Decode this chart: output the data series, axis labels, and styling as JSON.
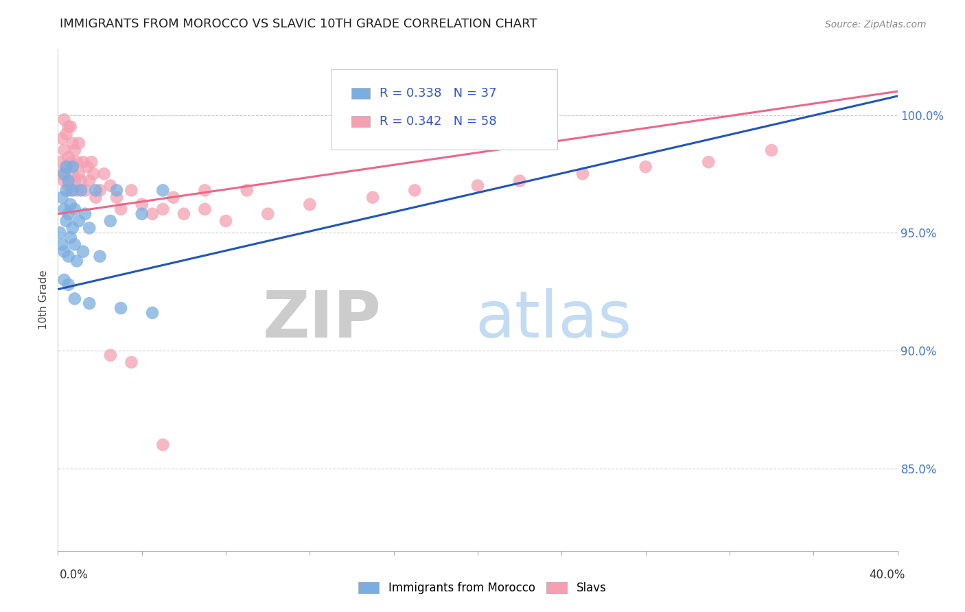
{
  "title": "IMMIGRANTS FROM MOROCCO VS SLAVIC 10TH GRADE CORRELATION CHART",
  "source_text": "Source: ZipAtlas.com",
  "ylabel_label": "10th Grade",
  "x_min": 0.0,
  "x_max": 0.4,
  "y_min": 0.815,
  "y_max": 1.028,
  "yticks": [
    0.85,
    0.9,
    0.95,
    1.0
  ],
  "ytick_labels": [
    "85.0%",
    "90.0%",
    "95.0%",
    "100.0%"
  ],
  "grid_color": "#cccccc",
  "background_color": "#ffffff",
  "blue_color": "#7aade0",
  "pink_color": "#f4a0b0",
  "blue_line_color": "#2255bb",
  "pink_line_color": "#ee6688",
  "watermark_zip": "ZIP",
  "watermark_atlas": "atlas",
  "morocco_blue_trend_x0": 0.0,
  "morocco_blue_trend_y0": 0.926,
  "morocco_blue_trend_x1": 0.4,
  "morocco_blue_trend_y1": 1.008,
  "slavs_pink_trend_x0": 0.0,
  "slavs_pink_trend_y0": 0.958,
  "slavs_pink_trend_x1": 0.4,
  "slavs_pink_trend_y1": 1.01,
  "morocco_x": [
    0.001,
    0.002,
    0.002,
    0.003,
    0.003,
    0.003,
    0.004,
    0.004,
    0.004,
    0.005,
    0.005,
    0.005,
    0.006,
    0.006,
    0.007,
    0.007,
    0.007,
    0.008,
    0.008,
    0.009,
    0.01,
    0.011,
    0.012,
    0.013,
    0.015,
    0.018,
    0.02,
    0.025,
    0.028,
    0.04,
    0.05,
    0.003,
    0.005,
    0.008,
    0.015,
    0.03,
    0.045
  ],
  "morocco_y": [
    0.95,
    0.945,
    0.965,
    0.942,
    0.96,
    0.975,
    0.955,
    0.968,
    0.978,
    0.94,
    0.958,
    0.972,
    0.948,
    0.962,
    0.952,
    0.968,
    0.978,
    0.945,
    0.96,
    0.938,
    0.955,
    0.968,
    0.942,
    0.958,
    0.952,
    0.968,
    0.94,
    0.955,
    0.968,
    0.958,
    0.968,
    0.93,
    0.928,
    0.922,
    0.92,
    0.918,
    0.916
  ],
  "slavs_x": [
    0.001,
    0.002,
    0.002,
    0.003,
    0.003,
    0.003,
    0.004,
    0.004,
    0.005,
    0.005,
    0.005,
    0.006,
    0.006,
    0.006,
    0.007,
    0.007,
    0.008,
    0.008,
    0.009,
    0.009,
    0.01,
    0.01,
    0.011,
    0.012,
    0.013,
    0.014,
    0.015,
    0.016,
    0.017,
    0.018,
    0.02,
    0.022,
    0.025,
    0.028,
    0.03,
    0.035,
    0.04,
    0.045,
    0.05,
    0.055,
    0.06,
    0.07,
    0.08,
    0.09,
    0.1,
    0.12,
    0.15,
    0.17,
    0.2,
    0.22,
    0.25,
    0.28,
    0.31,
    0.34,
    0.025,
    0.035,
    0.05,
    0.07
  ],
  "slavs_y": [
    0.98,
    0.975,
    0.99,
    0.972,
    0.985,
    0.998,
    0.978,
    0.992,
    0.97,
    0.982,
    0.995,
    0.968,
    0.98,
    0.995,
    0.975,
    0.988,
    0.972,
    0.985,
    0.968,
    0.98,
    0.975,
    0.988,
    0.972,
    0.98,
    0.968,
    0.978,
    0.972,
    0.98,
    0.975,
    0.965,
    0.968,
    0.975,
    0.97,
    0.965,
    0.96,
    0.968,
    0.962,
    0.958,
    0.96,
    0.965,
    0.958,
    0.96,
    0.955,
    0.968,
    0.958,
    0.962,
    0.965,
    0.968,
    0.97,
    0.972,
    0.975,
    0.978,
    0.98,
    0.985,
    0.898,
    0.895,
    0.86,
    0.968
  ]
}
